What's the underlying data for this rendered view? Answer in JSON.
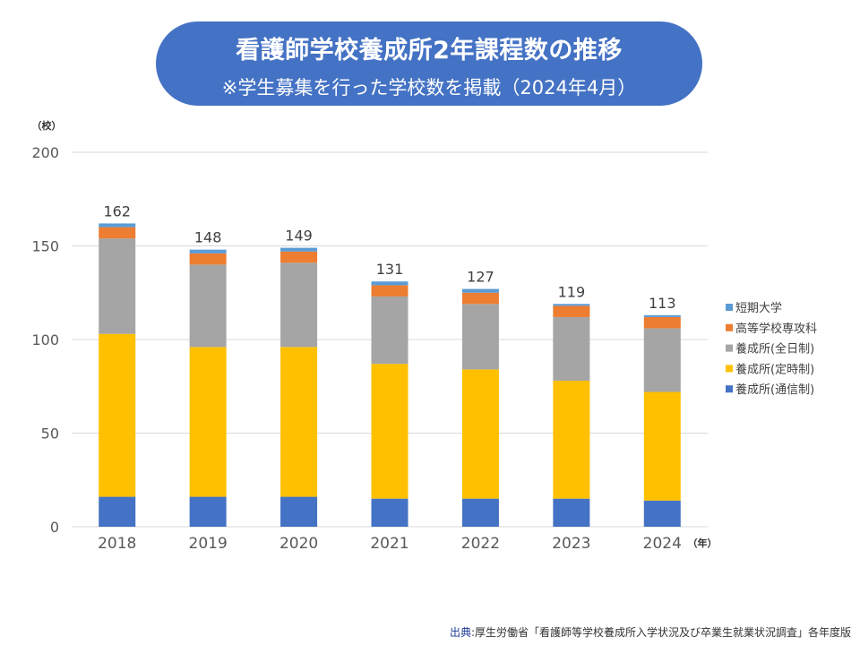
{
  "title": {
    "main": "看護師学校養成所2年課程数の推移",
    "sub": "※学生募集を行った学校数を掲載（2024年4月）"
  },
  "chart_data": {
    "type": "bar",
    "stacked": true,
    "title": "看護師学校養成所2年課程数の推移",
    "subtitle": "※学生募集を行った学校数を掲載（2024年4月）",
    "ylabel": "（校）",
    "xlabel": "（年）",
    "ylim": [
      0,
      200
    ],
    "yticks": [
      0,
      50,
      100,
      150,
      200
    ],
    "grid": true,
    "legend_position": "right",
    "categories": [
      "2018",
      "2019",
      "2020",
      "2021",
      "2022",
      "2023",
      "2024"
    ],
    "totals": [
      162,
      148,
      149,
      131,
      127,
      119,
      113
    ],
    "series": [
      {
        "name": "養成所(通信制)",
        "color": "#4472c4",
        "values": [
          16,
          16,
          16,
          15,
          15,
          15,
          14
        ]
      },
      {
        "name": "養成所(定時制)",
        "color": "#ffc000",
        "values": [
          87,
          80,
          80,
          72,
          69,
          63,
          58
        ]
      },
      {
        "name": "養成所(全日制)",
        "color": "#a5a5a5",
        "values": [
          51,
          44,
          45,
          36,
          35,
          34,
          34
        ]
      },
      {
        "name": "高等学校専攻科",
        "color": "#ed7d31",
        "values": [
          6,
          6,
          6,
          6,
          6,
          6,
          6
        ]
      },
      {
        "name": "短期大学",
        "color": "#5b9bd5",
        "values": [
          2,
          2,
          2,
          2,
          2,
          1,
          1
        ]
      }
    ]
  },
  "source": {
    "label": "出典",
    "text": ":厚生労働省「看護師等学校養成所入学状況及び卒業生就業状況調査」各年度版"
  }
}
